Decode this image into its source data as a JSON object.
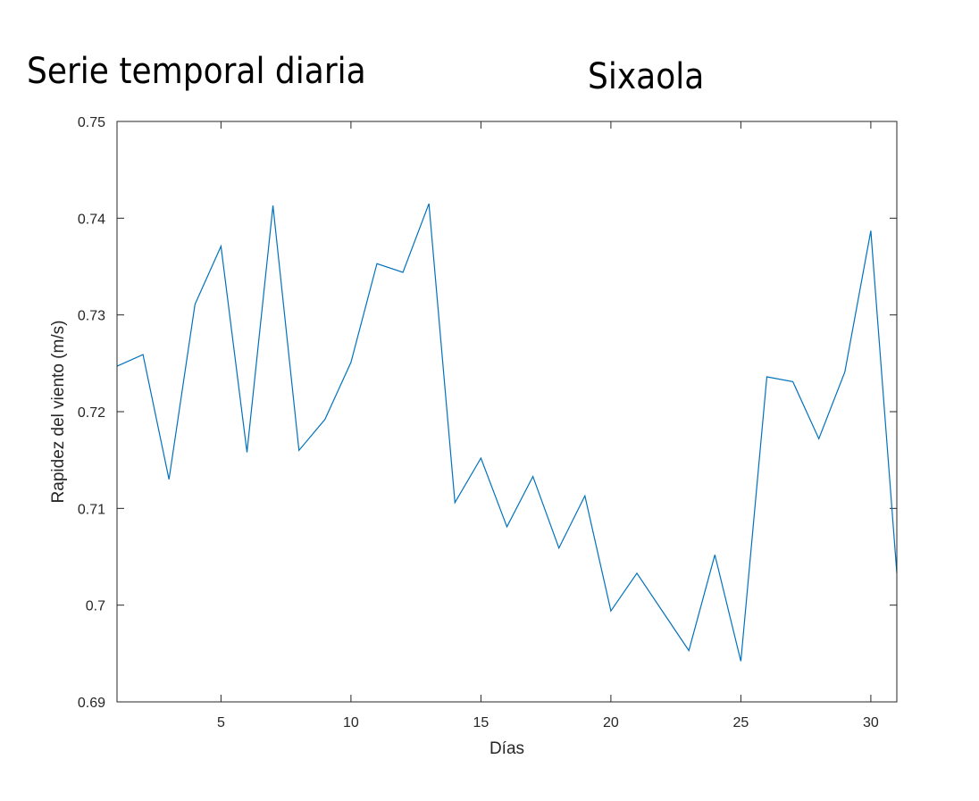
{
  "headings": {
    "left": "Serie temporal diaria",
    "right": "Sixaola"
  },
  "colors": {
    "line": "#0072BD",
    "axis": "#262626",
    "background": "#ffffff"
  },
  "chart_data": {
    "type": "line",
    "title": "Sixaola",
    "subtitle": "Serie temporal diaria",
    "xlabel": "Días",
    "ylabel": "Rapidez del viento (m/s)",
    "xlim": [
      1,
      31
    ],
    "ylim": [
      0.69,
      0.75
    ],
    "xticks": [
      5,
      10,
      15,
      20,
      25,
      30
    ],
    "yticks": [
      0.69,
      0.7,
      0.71,
      0.72,
      0.73,
      0.74,
      0.75
    ],
    "ytick_labels": [
      "0.69",
      "0.7",
      "0.71",
      "0.72",
      "0.73",
      "0.74",
      "0.75"
    ],
    "grid": false,
    "x": [
      1,
      2,
      3,
      4,
      5,
      6,
      7,
      8,
      9,
      10,
      11,
      12,
      13,
      14,
      15,
      16,
      17,
      18,
      19,
      20,
      21,
      22,
      23,
      24,
      25,
      26,
      27,
      28,
      29,
      30,
      31
    ],
    "series": [
      {
        "values": [
          0.7247,
          0.7259,
          0.713,
          0.7311,
          0.7371,
          0.7158,
          0.7413,
          0.716,
          0.7192,
          0.7251,
          0.7353,
          0.7344,
          0.7415,
          0.7106,
          0.7152,
          0.7081,
          0.7133,
          0.7059,
          0.7113,
          0.6994,
          0.7033,
          0.6993,
          0.6953,
          0.7052,
          0.6942,
          0.7236,
          0.7231,
          0.7172,
          0.7241,
          0.7387,
          0.7033
        ]
      }
    ]
  }
}
